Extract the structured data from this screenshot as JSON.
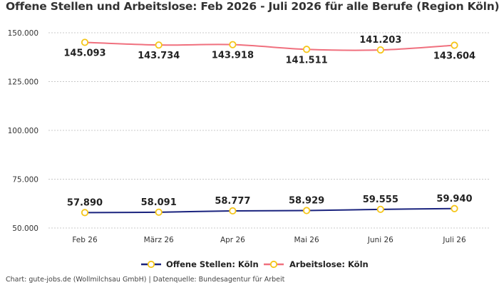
{
  "chart_data": {
    "type": "line",
    "title": "Offene Stellen und Arbeitslose: Feb 2026 - Juli 2026 für alle Berufe (Region Köln)",
    "categories": [
      "Feb 26",
      "März 26",
      "Apr 26",
      "Mai 26",
      "Juni 26",
      "Juli 26"
    ],
    "ylim": [
      50000,
      150000
    ],
    "yticks": [
      50000,
      75000,
      100000,
      125000,
      150000
    ],
    "ytick_labels": [
      "50.000",
      "75.000",
      "100.000",
      "125.000",
      "150.000"
    ],
    "grid": true,
    "legend_position": "bottom",
    "series": [
      {
        "name": "Offene Stellen: Köln",
        "color": "#1a237e",
        "marker_color": "#f5c518",
        "values": [
          57890,
          58091,
          58777,
          58929,
          59555,
          59940
        ],
        "labels": [
          "57.890",
          "58.091",
          "58.777",
          "58.929",
          "59.555",
          "59.940"
        ],
        "label_position": "above"
      },
      {
        "name": "Arbeitslose: Köln",
        "color": "#f0707e",
        "marker_color": "#f5c518",
        "values": [
          145093,
          143734,
          143918,
          141511,
          141203,
          143604
        ],
        "labels": [
          "145.093",
          "143.734",
          "143.918",
          "141.511",
          "141.203",
          "143.604"
        ],
        "label_position": [
          "below",
          "below",
          "below",
          "below",
          "above",
          "below"
        ]
      }
    ]
  },
  "footer": "Chart: gute-jobs.de (Wollmilchsau GmbH) | Datenquelle: Bundesagentur für Arbeit"
}
